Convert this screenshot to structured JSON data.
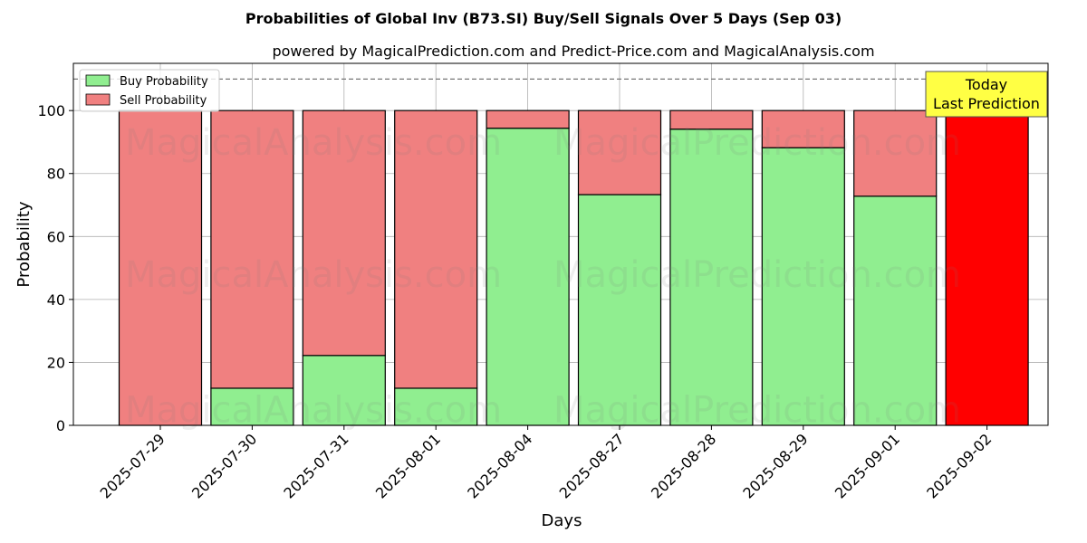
{
  "title": "Probabilities of Global Inv (B73.SI) Buy/Sell Signals Over 5 Days (Sep 03)",
  "subtitle": "powered by MagicalPrediction.com and Predict-Price.com and MagicalAnalysis.com",
  "watermarks": [
    "MagicalAnalysis.com",
    "MagicalPrediction.com"
  ],
  "annotation": {
    "line1": "Today",
    "line2": "Last Prediction"
  },
  "colors": {
    "buy": "#90ee90",
    "sell": "#f08080",
    "today_sell": "#ff0000",
    "annotation_bg": "#ffff44"
  },
  "chart_data": {
    "type": "bar",
    "stacked": true,
    "xlabel": "Days",
    "ylabel": "Probability",
    "ylim": [
      0,
      115
    ],
    "yticks": [
      0,
      20,
      40,
      60,
      80,
      100
    ],
    "grid": true,
    "legend_position": "top-left",
    "threshold_line": 110,
    "categories": [
      "2025-07-29",
      "2025-07-30",
      "2025-07-31",
      "2025-08-01",
      "2025-08-04",
      "2025-08-27",
      "2025-08-28",
      "2025-08-29",
      "2025-09-01",
      "2025-09-02"
    ],
    "series": [
      {
        "name": "Buy Probability",
        "values": [
          0,
          11.8,
          22.2,
          11.8,
          94.4,
          73.3,
          94.1,
          88.2,
          72.8,
          0
        ]
      },
      {
        "name": "Sell Probability",
        "values": [
          100,
          88.2,
          77.8,
          88.2,
          5.6,
          26.7,
          5.9,
          11.8,
          27.2,
          100
        ]
      }
    ]
  }
}
